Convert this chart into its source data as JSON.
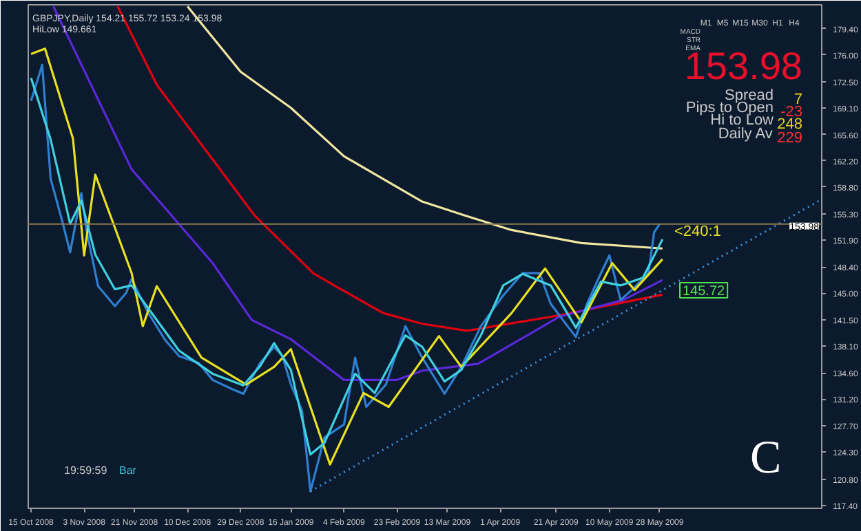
{
  "chart_data": {
    "type": "line",
    "title": "GBPJPY,Daily  154.21 155.72 153.24 153.98",
    "subtitle": "HiLow 149.661",
    "xlim": [
      "2008-10-14",
      "2009-07-25"
    ],
    "ylim": [
      117.0,
      182.5
    ],
    "xticks": [
      {
        "value": "2008-10-15",
        "label": "15 Oct 2008"
      },
      {
        "value": "2008-11-03",
        "label": "3 Nov 2008"
      },
      {
        "value": "2008-11-21",
        "label": "21 Nov 2008"
      },
      {
        "value": "2008-12-10",
        "label": "10 Dec 2008"
      },
      {
        "value": "2008-12-29",
        "label": "29 Dec 2008"
      },
      {
        "value": "2009-01-16",
        "label": "16 Jan 2009"
      },
      {
        "value": "2009-02-04",
        "label": "4 Feb 2009"
      },
      {
        "value": "2009-02-23",
        "label": "23 Feb 2009"
      },
      {
        "value": "2009-03-13",
        "label": "13 Mar 2009"
      },
      {
        "value": "2009-04-01",
        "label": "1 Apr 2009"
      },
      {
        "value": "2009-04-21",
        "label": "21 Apr 2009"
      },
      {
        "value": "2009-05-10",
        "label": "10 May 2009"
      },
      {
        "value": "2009-05-28",
        "label": "28 May 2009"
      }
    ],
    "yticks": [
      {
        "value": 179.4,
        "label": "179.40"
      },
      {
        "value": 176.0,
        "label": "176.00"
      },
      {
        "value": 172.5,
        "label": "172.50"
      },
      {
        "value": 169.1,
        "label": "169.10"
      },
      {
        "value": 165.6,
        "label": "165.60"
      },
      {
        "value": 162.2,
        "label": "162.20"
      },
      {
        "value": 158.8,
        "label": "158.80"
      },
      {
        "value": 155.3,
        "label": "155.30"
      },
      {
        "value": 151.9,
        "label": "151.90"
      },
      {
        "value": 148.4,
        "label": "148.40"
      },
      {
        "value": 145.0,
        "label": "145.00"
      },
      {
        "value": 141.5,
        "label": "141.50"
      },
      {
        "value": 138.1,
        "label": "138.10"
      },
      {
        "value": 134.6,
        "label": "134.60"
      },
      {
        "value": 131.2,
        "label": "131.20"
      },
      {
        "value": 127.7,
        "label": "127.70"
      },
      {
        "value": 124.3,
        "label": "124.30"
      },
      {
        "value": 120.8,
        "label": "120.80"
      },
      {
        "value": 117.4,
        "label": "117.40"
      }
    ],
    "grid": false,
    "marker": "none",
    "series": [
      {
        "color": "#f0e6a0",
        "x": [
          "2008-12-10",
          "2008-12-29",
          "2009-01-16",
          "2009-02-04",
          "2009-03-04",
          "2009-03-20",
          "2009-04-05",
          "2009-04-30",
          "2009-05-29"
        ],
        "values": [
          182.3,
          173.8,
          169.1,
          162.8,
          156.9,
          155.0,
          153.2,
          151.5,
          150.8
        ]
      },
      {
        "color": "#e00010",
        "x": [
          "2008-11-15",
          "2008-11-29",
          "2009-01-03",
          "2009-01-24",
          "2009-02-01",
          "2009-02-18",
          "2009-03-04",
          "2009-03-20",
          "2009-04-22",
          "2009-05-11",
          "2009-05-29"
        ],
        "values": [
          182.3,
          172.1,
          155.1,
          147.6,
          145.9,
          142.4,
          141.0,
          140.1,
          142.1,
          143.5,
          144.8
        ]
      },
      {
        "color": "#5a28d8",
        "x": [
          "2008-10-23",
          "2008-11-20",
          "2008-12-19",
          "2009-01-02",
          "2009-01-16",
          "2009-02-04",
          "2009-02-23",
          "2009-03-04",
          "2009-03-24",
          "2009-04-22",
          "2009-05-15",
          "2009-05-29"
        ],
        "values": [
          182.3,
          161.1,
          148.9,
          141.5,
          139.0,
          133.7,
          133.7,
          134.9,
          135.8,
          141.9,
          144.1,
          146.7
        ]
      },
      {
        "color": "#2f7fd0",
        "x": [
          "2008-10-15",
          "2008-10-19",
          "2008-10-22",
          "2008-10-26",
          "2008-10-29",
          "2008-11-02",
          "2008-11-04",
          "2008-11-08",
          "2008-11-14",
          "2008-11-18",
          "2008-11-20",
          "2008-11-26",
          "2008-12-02",
          "2008-12-07",
          "2008-12-14",
          "2008-12-19",
          "2008-12-26",
          "2008-12-30",
          "2009-01-05",
          "2009-01-10",
          "2009-01-13",
          "2009-01-16",
          "2009-01-20",
          "2009-01-23",
          "2009-01-28",
          "2009-02-04",
          "2009-02-08",
          "2009-02-12",
          "2009-02-19",
          "2009-02-26",
          "2009-03-04",
          "2009-03-12",
          "2009-03-18",
          "2009-03-25",
          "2009-04-02",
          "2009-04-09",
          "2009-04-15",
          "2009-04-19",
          "2009-04-25",
          "2009-04-28",
          "2009-05-02",
          "2009-05-07",
          "2009-05-10",
          "2009-05-14",
          "2009-05-18",
          "2009-05-24",
          "2009-05-26",
          "2009-05-28"
        ],
        "values": [
          170.0,
          174.7,
          159.9,
          154.6,
          150.3,
          158.0,
          152.9,
          145.9,
          143.3,
          145.0,
          146.8,
          142.4,
          138.9,
          136.8,
          135.9,
          133.7,
          132.5,
          131.9,
          135.9,
          138.0,
          136.8,
          133.1,
          129.7,
          119.2,
          126.2,
          127.9,
          136.6,
          130.2,
          133.1,
          140.7,
          136.6,
          131.9,
          135.4,
          140.7,
          144.7,
          147.6,
          147.6,
          143.6,
          140.7,
          139.3,
          143.6,
          147.6,
          149.9,
          144.1,
          145.4,
          147.6,
          152.9,
          153.98
        ]
      },
      {
        "color": "#e8e020",
        "x": [
          "2008-10-15",
          "2008-10-20",
          "2008-10-30",
          "2008-11-03",
          "2008-11-07",
          "2008-11-20",
          "2008-11-24",
          "2008-11-29",
          "2008-12-15",
          "2008-12-31",
          "2009-01-10",
          "2009-01-16",
          "2009-01-30",
          "2009-02-11",
          "2009-02-20",
          "2009-03-10",
          "2009-03-18",
          "2009-04-05",
          "2009-04-17",
          "2009-04-30",
          "2009-05-11",
          "2009-05-19",
          "2009-05-29"
        ],
        "values": [
          176.1,
          176.8,
          165.1,
          149.9,
          160.4,
          147.6,
          140.7,
          145.9,
          136.6,
          133.1,
          135.4,
          137.7,
          122.7,
          132.0,
          130.2,
          139.4,
          135.4,
          142.4,
          148.2,
          141.2,
          148.9,
          145.4,
          149.4
        ]
      },
      {
        "color": "#40d0e0",
        "x": [
          "2008-10-15",
          "2008-10-22",
          "2008-10-29",
          "2008-11-02",
          "2008-11-07",
          "2008-11-14",
          "2008-11-20",
          "2008-11-26",
          "2008-12-07",
          "2008-12-19",
          "2008-12-30",
          "2009-01-05",
          "2009-01-10",
          "2009-01-16",
          "2009-01-23",
          "2009-01-28",
          "2009-02-08",
          "2009-02-15",
          "2009-02-26",
          "2009-03-04",
          "2009-03-12",
          "2009-03-18",
          "2009-03-25",
          "2009-04-02",
          "2009-04-09",
          "2009-04-19",
          "2009-04-28",
          "2009-05-07",
          "2009-05-14",
          "2009-05-22",
          "2009-05-29"
        ],
        "values": [
          173.0,
          165.0,
          154.0,
          157.0,
          150.0,
          145.5,
          146.0,
          143.0,
          137.5,
          134.5,
          133.0,
          135.5,
          138.5,
          135.0,
          124.0,
          125.5,
          134.5,
          132.0,
          139.5,
          138.0,
          133.5,
          135.0,
          139.5,
          146.0,
          147.5,
          146.0,
          140.5,
          146.5,
          146.0,
          147.0,
          152.0
        ]
      },
      {
        "color": "#3a90d8",
        "line_style": "dotted",
        "x": [
          "2009-01-23",
          "2009-07-25"
        ],
        "values": [
          119.2,
          157.2
        ]
      }
    ],
    "ref_lines": [
      {
        "axis": "y",
        "value": 153.98,
        "label": "153.98",
        "color": "#8a7a50"
      }
    ],
    "annotations": [
      "153.98",
      "Spread",
      "7",
      "Pips to Open",
      "-23",
      "Hi to Low",
      "248",
      "Daily Av",
      "229",
      "<240:1",
      "145.72",
      "19:59:59",
      "Bar",
      "C",
      "M1",
      "M5",
      "M15",
      "M30",
      "H1",
      "H4",
      "MACD",
      "STR",
      "EMA"
    ]
  }
}
